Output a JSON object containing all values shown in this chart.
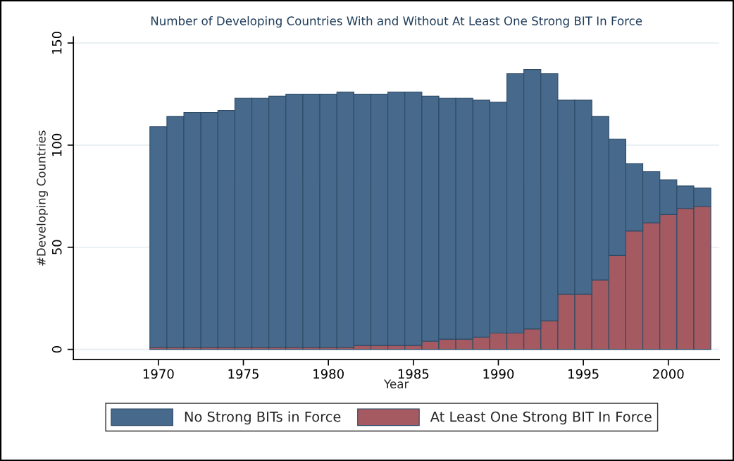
{
  "chart_data": {
    "type": "bar",
    "stacked": true,
    "title": "Number of Developing Countries With and Without At Least One Strong BIT In Force",
    "xlabel": "Year",
    "ylabel": "#Developing Countries",
    "x": [
      1970,
      1971,
      1972,
      1973,
      1974,
      1975,
      1976,
      1977,
      1978,
      1979,
      1980,
      1981,
      1982,
      1983,
      1984,
      1985,
      1986,
      1987,
      1988,
      1989,
      1990,
      1991,
      1992,
      1993,
      1994,
      1995,
      1996,
      1997,
      1998,
      1999,
      2000,
      2001,
      2002
    ],
    "series": [
      {
        "name": "At Least One Strong BIT In Force",
        "color": "#a45a60",
        "values": [
          1,
          1,
          1,
          1,
          1,
          1,
          1,
          1,
          1,
          1,
          1,
          1,
          2,
          2,
          2,
          2,
          4,
          5,
          5,
          6,
          8,
          8,
          10,
          14,
          27,
          27,
          34,
          46,
          58,
          62,
          66,
          69,
          70
        ]
      },
      {
        "name": "No Strong BITs in Force",
        "color": "#476a8c",
        "values": [
          108,
          113,
          115,
          115,
          116,
          122,
          122,
          123,
          124,
          124,
          124,
          125,
          123,
          123,
          124,
          124,
          120,
          118,
          118,
          116,
          113,
          127,
          127,
          121,
          95,
          95,
          80,
          57,
          33,
          25,
          17,
          11,
          9
        ]
      }
    ],
    "xlim": [
      1965,
      2003
    ],
    "xticks": [
      1970,
      1975,
      1980,
      1985,
      1990,
      1995,
      2000
    ],
    "ylim": [
      -5,
      153
    ],
    "yticks": [
      0,
      50,
      100,
      150
    ],
    "grid": "y",
    "legend": "bottom"
  }
}
